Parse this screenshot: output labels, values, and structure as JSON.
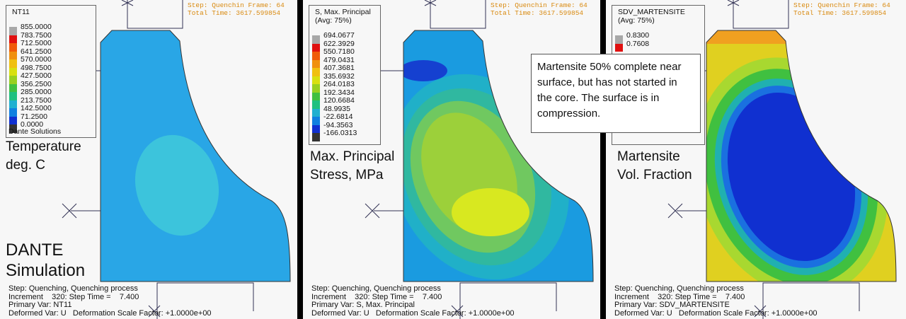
{
  "panels": [
    {
      "legend": {
        "title": "NT11",
        "labels": [
          "855.0000",
          "783.7500",
          "712.5000",
          "641.2500",
          "570.0000",
          "498.7500",
          "427.5000",
          "356.2500",
          "285.0000",
          "213.7500",
          "142.5000",
          "71.2500",
          "0.0000"
        ]
      },
      "legend_footer": "Dante Solutions",
      "caption": [
        "Temperature",
        "deg. C"
      ],
      "headline": [
        "DANTE",
        "Simulation"
      ],
      "status": [
        "Step: Quenchin Frame: 64",
        "Total Time: 3617.599854"
      ],
      "info": [
        "Step: Quenching, Quenching process",
        "Increment    320: Step Time =    7.400",
        "Primary Var: NT11",
        "Deformed Var: U   Deformation Scale Factor: +1.0000e+00"
      ]
    },
    {
      "legend": {
        "title": "S, Max. Principal",
        "avg": "(Avg: 75%)",
        "labels": [
          "694.0677",
          "622.3929",
          "550.7180",
          "479.0431",
          "407.3681",
          "335.6932",
          "264.0183",
          "192.3434",
          "120.6684",
          "48.9935",
          "-22.6814",
          "-94.3563",
          "-166.0313"
        ]
      },
      "caption": [
        "Max. Principal",
        "Stress, MPa"
      ],
      "status": [
        "Step: Quenchin Frame: 64",
        "Total Time: 3617.599854"
      ],
      "info": [
        "Step: Quenching, Quenching process",
        "Increment    320: Step Time =    7.400",
        "Primary Var: S, Max. Principal",
        "Deformed Var: U   Deformation Scale Factor: +1.0000e+00"
      ]
    },
    {
      "legend": {
        "title": "SDV_MARTENSITE",
        "avg": "(Avg: 75%)",
        "labels": [
          "0.8300",
          "0.7608"
        ]
      },
      "caption": [
        "Martensite",
        "Vol. Fraction"
      ],
      "status": [
        "Step: Quenchin Frame: 64",
        "Total Time: 3617.599854"
      ],
      "info": [
        "Step: Quenching, Quenching process",
        "Increment    320: Step Time =    7.400",
        "Primary Var: SDV_MARTENSITE",
        "Deformed Var: U   Deformation Scale Factor: +1.0000e+00"
      ]
    }
  ],
  "callout": "Martensite 50% complete near surface, but has not started in the core. The surface is in compression."
}
